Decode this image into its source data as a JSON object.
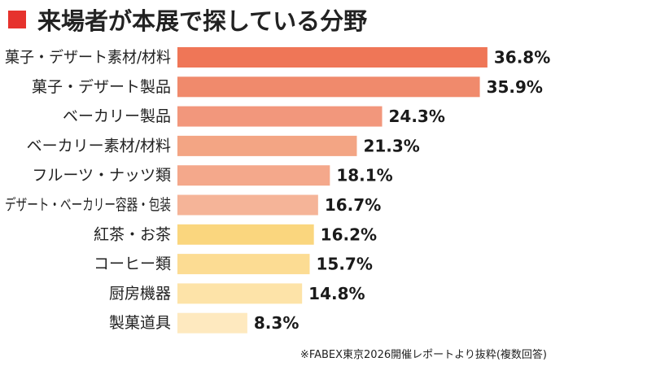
{
  "title": "来場者が本展で探している分野",
  "source_note": "※FABEX東京2026開催レポートより抜粋(複数回答)",
  "colors": {
    "title_square": "#e6322d",
    "label_text": "#222222",
    "value_text": "#1a1a1a"
  },
  "chart_data": {
    "type": "bar",
    "orientation": "horizontal",
    "title": "来場者が本展で探している分野",
    "xlabel": "",
    "ylabel": "",
    "xlim": [
      0,
      40
    ],
    "unit": "%",
    "grid": false,
    "categories": [
      "菓子・デザート素材/材料",
      "菓子・デザート製品",
      "ベーカリー製品",
      "ベーカリー素材/材料",
      "フルーツ・ナッツ類",
      "デザート・ベーカリー容器・包装",
      "紅茶・お茶",
      "コーヒー類",
      "厨房機器",
      "製菓道具"
    ],
    "values": [
      36.8,
      35.9,
      24.3,
      21.3,
      18.1,
      16.7,
      16.2,
      15.7,
      14.8,
      8.3
    ],
    "value_labels": [
      "36.8%",
      "35.9%",
      "24.3%",
      "21.3%",
      "18.1%",
      "16.7%",
      "16.2%",
      "15.7%",
      "14.8%",
      "8.3%"
    ],
    "bar_colors": [
      "#ef7657",
      "#f08a6c",
      "#f2977c",
      "#f3a584",
      "#f4a88b",
      "#f5b498",
      "#fad67e",
      "#fcdc93",
      "#fde3a8",
      "#fee9bf"
    ]
  }
}
